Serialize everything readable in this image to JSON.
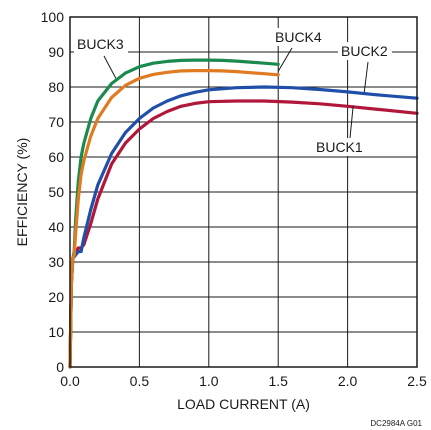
{
  "chart_data": {
    "type": "line",
    "xlabel": "LOAD CURRENT  (A)",
    "ylabel": "EFFICIENCY (%)",
    "xlim": [
      0,
      2.5
    ],
    "ylim": [
      0,
      100
    ],
    "x_ticks": [
      {
        "value": 0,
        "label": "0.0"
      },
      {
        "value": 0.5,
        "label": "0.5"
      },
      {
        "value": 1.0,
        "label": "1.0"
      },
      {
        "value": 1.5,
        "label": "1.5"
      },
      {
        "value": 2.0,
        "label": "2.0"
      },
      {
        "value": 2.5,
        "label": "2.5"
      }
    ],
    "y_ticks": [
      {
        "value": 0,
        "label": "0"
      },
      {
        "value": 10,
        "label": "10"
      },
      {
        "value": 20,
        "label": "20"
      },
      {
        "value": 30,
        "label": "30"
      },
      {
        "value": 40,
        "label": "40"
      },
      {
        "value": 50,
        "label": "50"
      },
      {
        "value": 60,
        "label": "60"
      },
      {
        "value": 70,
        "label": "70"
      },
      {
        "value": 80,
        "label": "80"
      },
      {
        "value": 90,
        "label": "90"
      },
      {
        "value": 100,
        "label": "100"
      }
    ],
    "grid": true,
    "legend": "inline labels with leader lines",
    "series": [
      {
        "name": "BUCK1",
        "color": "#b0173a",
        "x": [
          0.0,
          0.005,
          0.01,
          0.02,
          0.04,
          0.06,
          0.08,
          0.1,
          0.15,
          0.2,
          0.3,
          0.4,
          0.5,
          0.6,
          0.7,
          0.8,
          0.9,
          1.0,
          1.2,
          1.4,
          1.6,
          1.8,
          2.0,
          2.2,
          2.5
        ],
        "y": [
          0,
          12,
          24,
          31,
          33,
          34,
          34,
          35,
          41,
          48,
          58,
          64,
          68,
          71,
          73,
          74.5,
          75.3,
          75.8,
          76,
          76,
          75.7,
          75.2,
          74.5,
          73.7,
          72.5
        ]
      },
      {
        "name": "BUCK2",
        "color": "#1f4fa8",
        "x": [
          0.0,
          0.005,
          0.01,
          0.02,
          0.04,
          0.06,
          0.08,
          0.1,
          0.15,
          0.2,
          0.3,
          0.4,
          0.5,
          0.6,
          0.7,
          0.8,
          0.9,
          1.0,
          1.2,
          1.4,
          1.6,
          1.8,
          2.0,
          2.2,
          2.5
        ],
        "y": [
          0,
          12,
          24,
          31,
          32,
          33,
          33,
          37,
          45,
          52,
          61,
          67,
          71,
          74,
          76,
          77.5,
          78.5,
          79.2,
          79.8,
          80,
          79.8,
          79.3,
          78.6,
          77.8,
          76.8
        ]
      },
      {
        "name": "BUCK3",
        "color": "#1a8a4e",
        "x": [
          0.0,
          0.005,
          0.01,
          0.02,
          0.03,
          0.04,
          0.06,
          0.08,
          0.1,
          0.15,
          0.2,
          0.3,
          0.4,
          0.5,
          0.6,
          0.7,
          0.8,
          0.9,
          1.0,
          1.1,
          1.2,
          1.3,
          1.4,
          1.5
        ],
        "y": [
          0,
          12,
          24,
          31,
          33,
          42,
          53,
          60,
          64,
          71,
          76,
          81,
          84,
          85.8,
          86.8,
          87.3,
          87.6,
          87.7,
          87.7,
          87.6,
          87.4,
          87.1,
          86.8,
          86.5
        ]
      },
      {
        "name": "BUCK4",
        "color": "#e07b22",
        "x": [
          0.0,
          0.005,
          0.01,
          0.02,
          0.03,
          0.04,
          0.06,
          0.08,
          0.1,
          0.15,
          0.2,
          0.3,
          0.4,
          0.5,
          0.6,
          0.7,
          0.8,
          0.9,
          1.0,
          1.1,
          1.2,
          1.3,
          1.4,
          1.5
        ],
        "y": [
          0,
          12,
          24,
          31,
          32,
          38,
          48,
          55,
          59,
          66,
          71,
          77,
          80.5,
          82.5,
          83.6,
          84.2,
          84.6,
          84.7,
          84.7,
          84.6,
          84.4,
          84.1,
          83.8,
          83.5
        ]
      }
    ],
    "annotations": [
      {
        "text": "BUCK3",
        "series": "BUCK3"
      },
      {
        "text": "BUCK4",
        "series": "BUCK4"
      },
      {
        "text": "BUCK2",
        "series": "BUCK2"
      },
      {
        "text": "BUCK1",
        "series": "BUCK1"
      }
    ],
    "footnote": "DC2984A G01"
  }
}
